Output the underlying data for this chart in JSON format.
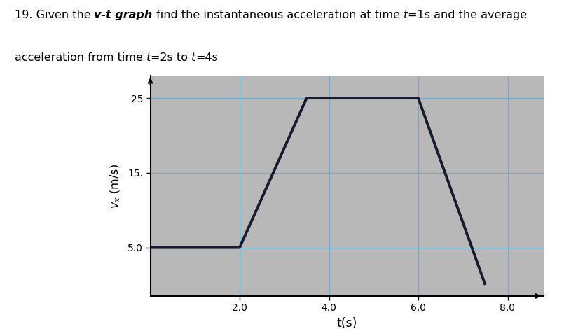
{
  "figure_background": "#ffffff",
  "graph_background": "#b8b8b8",
  "line_color": "#1a1a2e",
  "grid_color": "#6ab0d0",
  "xlabel": "t(s)",
  "ylabel": "v$_x$ (m/s)",
  "xticks": [
    2.0,
    4.0,
    6.0,
    8.0
  ],
  "yticks": [
    5.0,
    15.0,
    25.0
  ],
  "ytick_labels": [
    "5.0",
    "15.",
    "25"
  ],
  "xlim": [
    0,
    8.8
  ],
  "ylim": [
    -1.5,
    28
  ],
  "t_graph": [
    0,
    2.0,
    3.5,
    6.0,
    7.5
  ],
  "v_graph": [
    5.0,
    5.0,
    25.0,
    25.0,
    0.0
  ],
  "line_width": 2.8,
  "title_fontsize": 11.5
}
